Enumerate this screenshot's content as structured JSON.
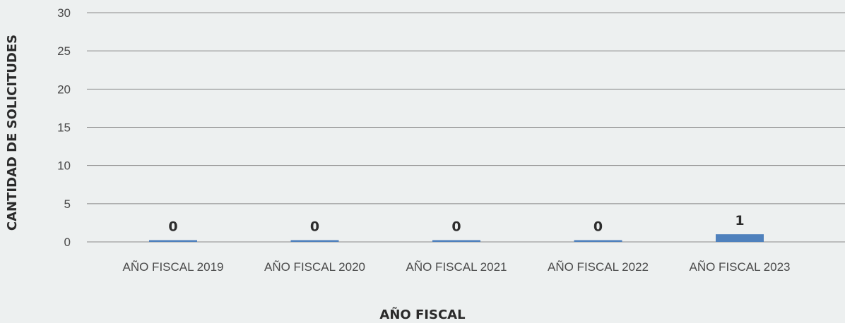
{
  "chart_data": {
    "type": "bar",
    "categories": [
      "AÑO FISCAL 2019",
      "AÑO FISCAL 2020",
      "AÑO FISCAL 2021",
      "AÑO FISCAL 2022",
      "AÑO FISCAL 2023"
    ],
    "values": [
      0,
      0,
      0,
      0,
      1
    ],
    "data_labels": [
      "0",
      "0",
      "0",
      "0",
      "1"
    ],
    "xlabel": "AÑO FISCAL",
    "ylabel": "CANTIDAD DE SOLICITUDES",
    "ylim": [
      0,
      30
    ],
    "yticks": [
      0,
      5,
      10,
      15,
      20,
      25,
      30
    ],
    "grid": true,
    "legend": "none",
    "colors": {
      "bar": "#4f81bd",
      "background": "#edf0f0",
      "grid": "#8a8a8a"
    }
  }
}
